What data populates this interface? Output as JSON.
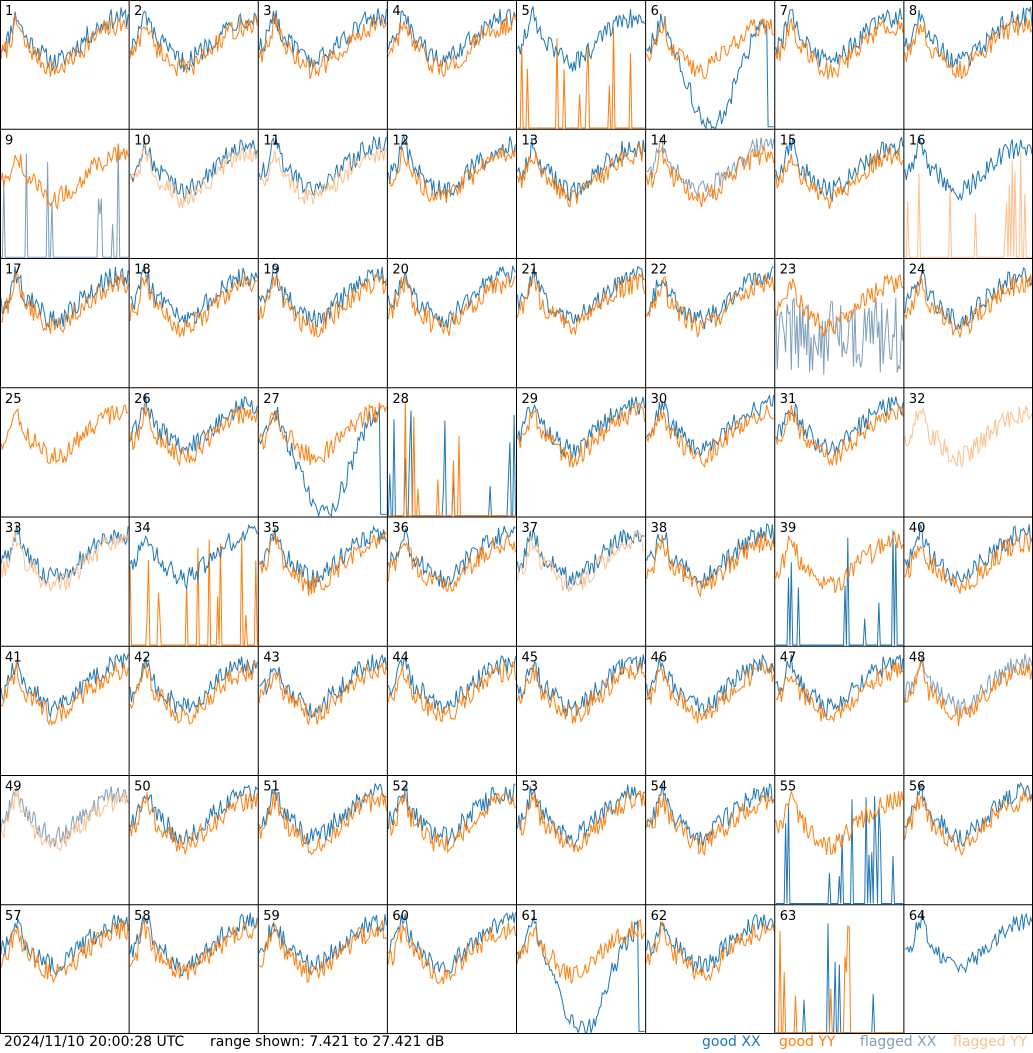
{
  "footer": {
    "timestamp": "2024/11/10 20:00:28 UTC",
    "range_text": "range shown: 7.421 to 27.421 dB",
    "legend": {
      "good_word": "good",
      "flagged_word": "flagged",
      "xx": "XX",
      "yy": "YY"
    }
  },
  "colors": {
    "good_xx": "#1f77b4",
    "good_yy": "#ff7f0e",
    "flagged_xx": "#7f9fba",
    "flagged_yy": "#fdc08c",
    "grid": "#000000"
  },
  "chart_data": {
    "type": "line",
    "layout": "small-multiples 8x8",
    "ylim_db": [
      7.421,
      27.421
    ],
    "panels": [
      {
        "label": "1",
        "xx": "good",
        "yy": "good",
        "pattern": "normal"
      },
      {
        "label": "2",
        "xx": "good",
        "yy": "good",
        "pattern": "normal"
      },
      {
        "label": "3",
        "xx": "good",
        "yy": "good",
        "pattern": "normal"
      },
      {
        "label": "4",
        "xx": "good",
        "yy": "good",
        "pattern": "normal"
      },
      {
        "label": "5",
        "xx": "good",
        "yy": "good",
        "pattern": "spiky-yy"
      },
      {
        "label": "6",
        "xx": "good",
        "yy": "good",
        "pattern": "dip-xx"
      },
      {
        "label": "7",
        "xx": "good",
        "yy": "good",
        "pattern": "normal"
      },
      {
        "label": "8",
        "xx": "good",
        "yy": "good",
        "pattern": "normal"
      },
      {
        "label": "9",
        "xx": "flagged",
        "yy": "good",
        "pattern": "spiky-xx"
      },
      {
        "label": "10",
        "xx": "good",
        "yy": "flagged",
        "pattern": "normal"
      },
      {
        "label": "11",
        "xx": "good",
        "yy": "flagged",
        "pattern": "normal"
      },
      {
        "label": "12",
        "xx": "good",
        "yy": "good",
        "pattern": "normal"
      },
      {
        "label": "13",
        "xx": "good",
        "yy": "good",
        "pattern": "normal"
      },
      {
        "label": "14",
        "xx": "flagged",
        "yy": "good",
        "pattern": "normal"
      },
      {
        "label": "15",
        "xx": "good",
        "yy": "good",
        "pattern": "normal"
      },
      {
        "label": "16",
        "xx": "good",
        "yy": "flagged",
        "pattern": "spiky-yy"
      },
      {
        "label": "17",
        "xx": "good",
        "yy": "good",
        "pattern": "normal"
      },
      {
        "label": "18",
        "xx": "good",
        "yy": "good",
        "pattern": "normal"
      },
      {
        "label": "19",
        "xx": "good",
        "yy": "good",
        "pattern": "normal"
      },
      {
        "label": "20",
        "xx": "good",
        "yy": "good",
        "pattern": "normal"
      },
      {
        "label": "21",
        "xx": "good",
        "yy": "good",
        "pattern": "normal"
      },
      {
        "label": "22",
        "xx": "good",
        "yy": "good",
        "pattern": "normal"
      },
      {
        "label": "23",
        "xx": "flagged",
        "yy": "good",
        "pattern": "noisy-xx"
      },
      {
        "label": "24",
        "xx": "good",
        "yy": "good",
        "pattern": "normal"
      },
      {
        "label": "25",
        "xx": "good",
        "yy": "good",
        "pattern": "yy-only"
      },
      {
        "label": "26",
        "xx": "good",
        "yy": "good",
        "pattern": "normal"
      },
      {
        "label": "27",
        "xx": "good",
        "yy": "good",
        "pattern": "dip-xx"
      },
      {
        "label": "28",
        "xx": "good",
        "yy": "good",
        "pattern": "spiky-both"
      },
      {
        "label": "29",
        "xx": "good",
        "yy": "good",
        "pattern": "normal"
      },
      {
        "label": "30",
        "xx": "good",
        "yy": "good",
        "pattern": "normal"
      },
      {
        "label": "31",
        "xx": "good",
        "yy": "good",
        "pattern": "normal"
      },
      {
        "label": "32",
        "xx": "flagged",
        "yy": "flagged",
        "pattern": "yy-only"
      },
      {
        "label": "33",
        "xx": "good",
        "yy": "flagged",
        "pattern": "normal"
      },
      {
        "label": "34",
        "xx": "good",
        "yy": "good",
        "pattern": "spiky-yy"
      },
      {
        "label": "35",
        "xx": "good",
        "yy": "good",
        "pattern": "normal"
      },
      {
        "label": "36",
        "xx": "good",
        "yy": "good",
        "pattern": "normal"
      },
      {
        "label": "37",
        "xx": "good",
        "yy": "flagged",
        "pattern": "normal"
      },
      {
        "label": "38",
        "xx": "good",
        "yy": "good",
        "pattern": "normal"
      },
      {
        "label": "39",
        "xx": "good",
        "yy": "good",
        "pattern": "spiky-xx"
      },
      {
        "label": "40",
        "xx": "good",
        "yy": "good",
        "pattern": "normal"
      },
      {
        "label": "41",
        "xx": "good",
        "yy": "good",
        "pattern": "normal"
      },
      {
        "label": "42",
        "xx": "good",
        "yy": "good",
        "pattern": "normal"
      },
      {
        "label": "43",
        "xx": "good",
        "yy": "good",
        "pattern": "normal"
      },
      {
        "label": "44",
        "xx": "good",
        "yy": "good",
        "pattern": "normal"
      },
      {
        "label": "45",
        "xx": "good",
        "yy": "good",
        "pattern": "normal"
      },
      {
        "label": "46",
        "xx": "good",
        "yy": "good",
        "pattern": "normal"
      },
      {
        "label": "47",
        "xx": "good",
        "yy": "good",
        "pattern": "normal"
      },
      {
        "label": "48",
        "xx": "flagged",
        "yy": "good",
        "pattern": "normal"
      },
      {
        "label": "49",
        "xx": "flagged",
        "yy": "flagged",
        "pattern": "normal"
      },
      {
        "label": "50",
        "xx": "good",
        "yy": "good",
        "pattern": "normal"
      },
      {
        "label": "51",
        "xx": "good",
        "yy": "good",
        "pattern": "normal"
      },
      {
        "label": "52",
        "xx": "good",
        "yy": "good",
        "pattern": "normal"
      },
      {
        "label": "53",
        "xx": "good",
        "yy": "good",
        "pattern": "normal"
      },
      {
        "label": "54",
        "xx": "good",
        "yy": "good",
        "pattern": "normal"
      },
      {
        "label": "55",
        "xx": "good",
        "yy": "good",
        "pattern": "spiky-xx"
      },
      {
        "label": "56",
        "xx": "good",
        "yy": "good",
        "pattern": "normal"
      },
      {
        "label": "57",
        "xx": "good",
        "yy": "good",
        "pattern": "normal"
      },
      {
        "label": "58",
        "xx": "good",
        "yy": "good",
        "pattern": "normal"
      },
      {
        "label": "59",
        "xx": "good",
        "yy": "good",
        "pattern": "normal"
      },
      {
        "label": "60",
        "xx": "good",
        "yy": "good",
        "pattern": "normal"
      },
      {
        "label": "61",
        "xx": "good",
        "yy": "good",
        "pattern": "dip-xx"
      },
      {
        "label": "62",
        "xx": "good",
        "yy": "good",
        "pattern": "normal"
      },
      {
        "label": "63",
        "xx": "good",
        "yy": "good",
        "pattern": "spiky-both"
      },
      {
        "label": "64",
        "xx": "good",
        "yy": "good",
        "pattern": "xx-only"
      }
    ]
  }
}
